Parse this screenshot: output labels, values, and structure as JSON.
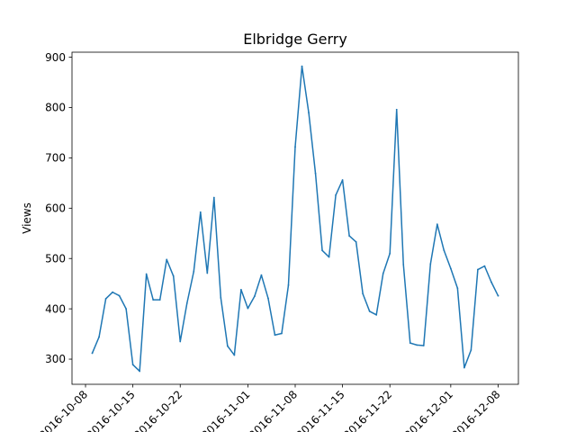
{
  "chart_data": {
    "type": "line",
    "title": "Elbridge Gerry",
    "xlabel": "",
    "ylabel": "Views",
    "ylim": [
      250,
      910
    ],
    "xlim": [
      "2016-10-06",
      "2016-12-11"
    ],
    "yticks": [
      300,
      400,
      500,
      600,
      700,
      800,
      900
    ],
    "xticks": [
      "2016-10-08",
      "2016-10-15",
      "2016-10-22",
      "2016-11-01",
      "2016-11-08",
      "2016-11-15",
      "2016-11-22",
      "2016-12-01",
      "2016-12-08"
    ],
    "grid": false,
    "line_color": "#1f77b4",
    "series": [
      {
        "x": [
          "2016-10-09",
          "2016-10-10",
          "2016-10-11",
          "2016-10-12",
          "2016-10-13",
          "2016-10-14",
          "2016-10-15",
          "2016-10-16",
          "2016-10-17",
          "2016-10-18",
          "2016-10-19",
          "2016-10-20",
          "2016-10-21",
          "2016-10-22",
          "2016-10-23",
          "2016-10-24",
          "2016-10-25",
          "2016-10-26",
          "2016-10-27",
          "2016-10-28",
          "2016-10-29",
          "2016-10-30",
          "2016-10-31",
          "2016-11-01",
          "2016-11-02",
          "2016-11-03",
          "2016-11-04",
          "2016-11-05",
          "2016-11-06",
          "2016-11-07",
          "2016-11-08",
          "2016-11-09",
          "2016-11-10",
          "2016-11-11",
          "2016-11-12",
          "2016-11-13",
          "2016-11-14",
          "2016-11-15",
          "2016-11-16",
          "2016-11-17",
          "2016-11-18",
          "2016-11-19",
          "2016-11-20",
          "2016-11-21",
          "2016-11-22",
          "2016-11-23",
          "2016-11-24",
          "2016-11-25",
          "2016-11-26",
          "2016-11-27",
          "2016-11-28",
          "2016-11-29",
          "2016-11-30",
          "2016-12-01",
          "2016-12-02",
          "2016-12-03",
          "2016-12-04",
          "2016-12-05",
          "2016-12-06",
          "2016-12-07",
          "2016-12-08"
        ],
        "values": [
          312,
          344,
          420,
          433,
          426,
          400,
          289,
          276,
          469,
          418,
          418,
          498,
          465,
          335,
          411,
          474,
          592,
          471,
          621,
          422,
          326,
          308,
          438,
          401,
          425,
          467,
          421,
          348,
          351,
          447,
          722,
          882,
          790,
          669,
          516,
          503,
          626,
          656,
          545,
          533,
          430,
          395,
          388,
          470,
          510,
          796,
          488,
          332,
          328,
          327,
          489,
          568,
          516,
          480,
          441,
          283,
          318,
          478,
          485,
          453,
          426
        ]
      }
    ]
  }
}
